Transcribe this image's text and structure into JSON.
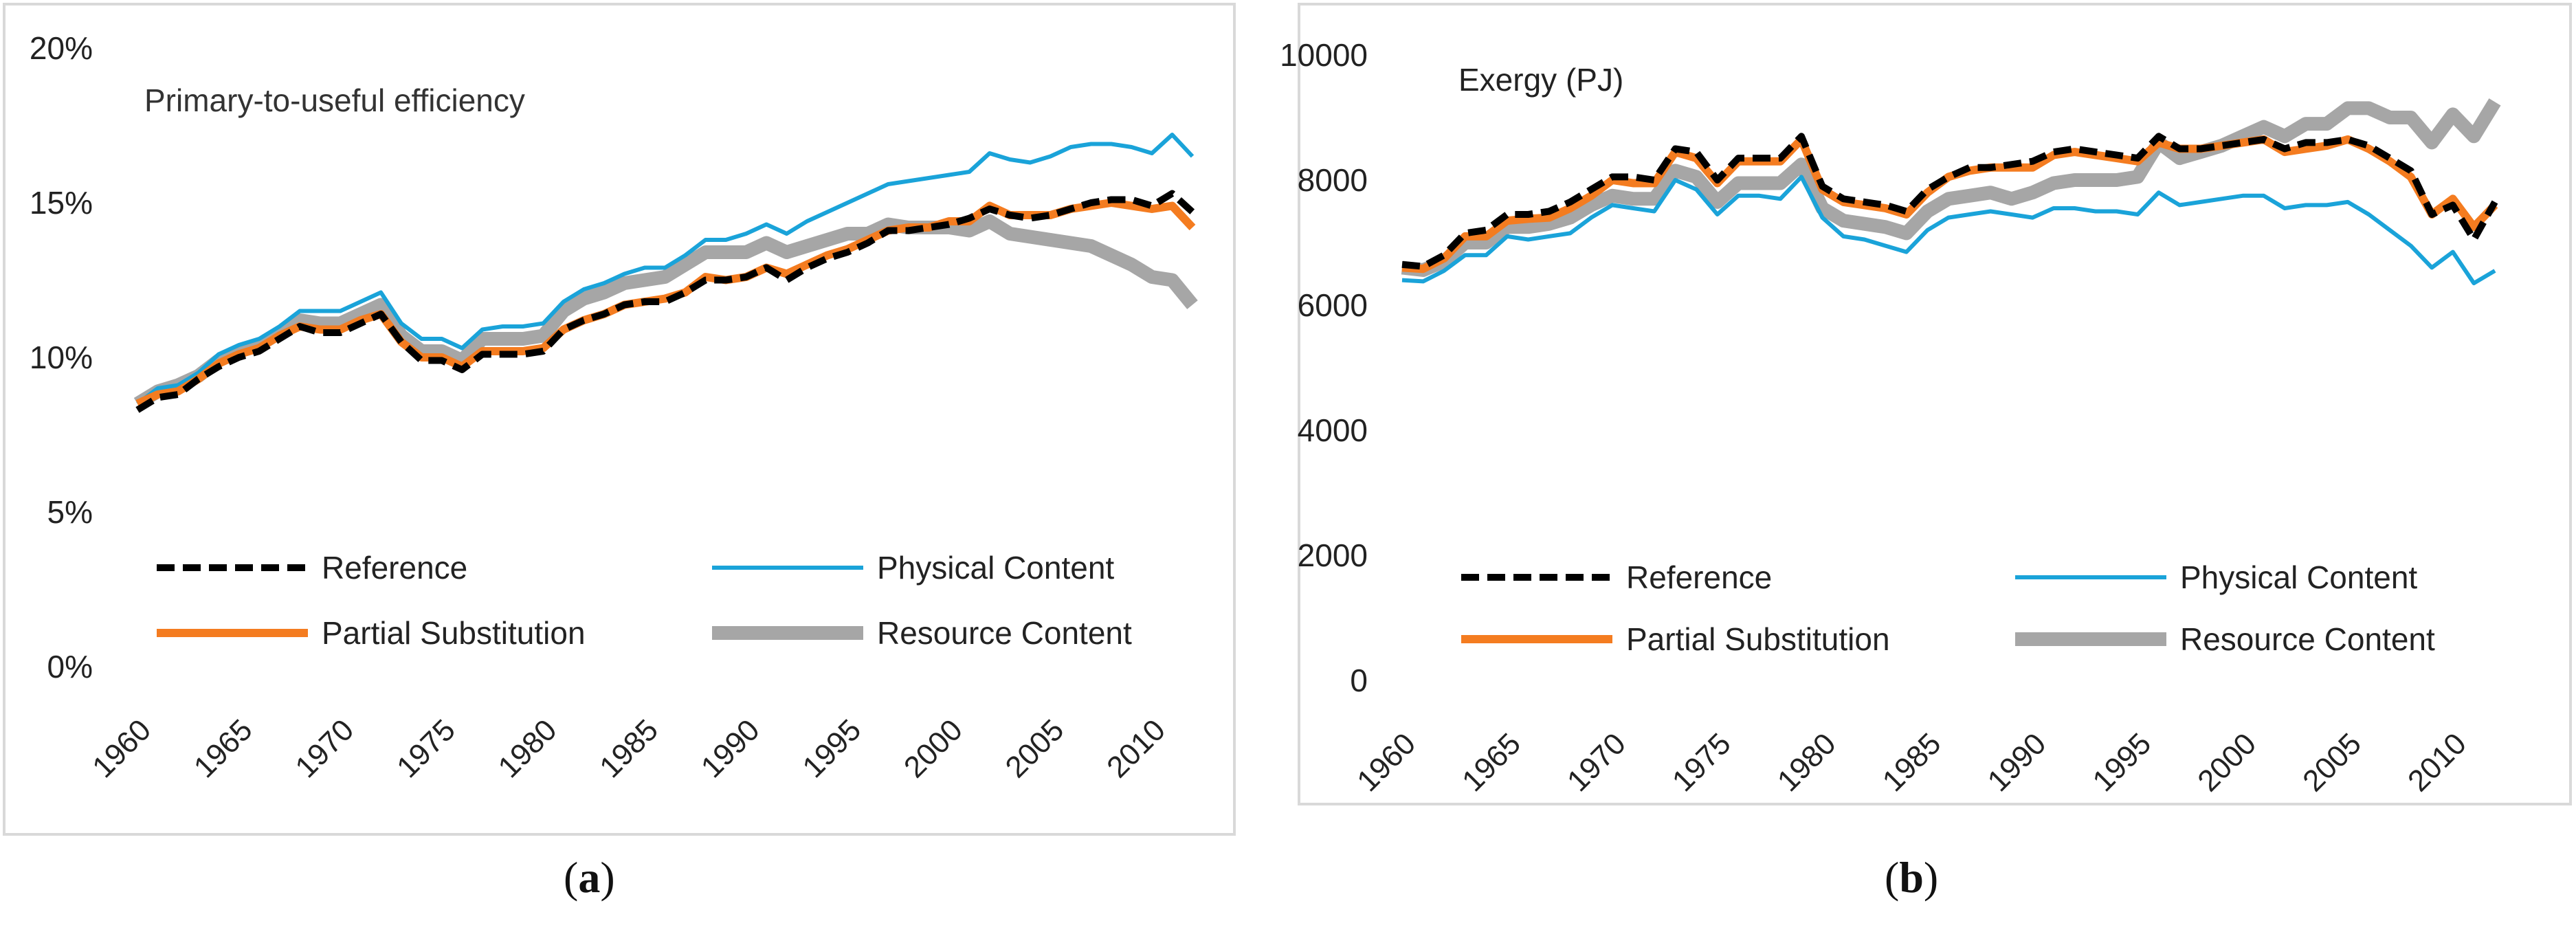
{
  "captions": {
    "a": {
      "open": "(",
      "letter": "a",
      "close": ")"
    },
    "b": {
      "open": "(",
      "letter": "b",
      "close": ")"
    }
  },
  "colors": {
    "reference": "#000000",
    "physical": "#1aa3d9",
    "partial": "#f47c20",
    "resource": "#a6a6a6",
    "frame": "#d9d9d9",
    "text": "#222222"
  },
  "chart_data": [
    {
      "type": "line",
      "title": "Primary-to-useful efficiency",
      "xlabel": "",
      "ylabel": "",
      "ylim": [
        0,
        20
      ],
      "xlim": [
        1960,
        2012
      ],
      "y_ticks": [
        {
          "value": 0,
          "label": "0%"
        },
        {
          "value": 5,
          "label": "5%"
        },
        {
          "value": 10,
          "label": "10%"
        },
        {
          "value": 15,
          "label": "15%"
        },
        {
          "value": 20,
          "label": "20%"
        }
      ],
      "x_ticks": [
        {
          "value": 1960,
          "label": "1960"
        },
        {
          "value": 1965,
          "label": "1965"
        },
        {
          "value": 1970,
          "label": "1970"
        },
        {
          "value": 1975,
          "label": "1975"
        },
        {
          "value": 1980,
          "label": "1980"
        },
        {
          "value": 1985,
          "label": "1985"
        },
        {
          "value": 1990,
          "label": "1990"
        },
        {
          "value": 1995,
          "label": "1995"
        },
        {
          "value": 2000,
          "label": "2000"
        },
        {
          "value": 2005,
          "label": "2005"
        },
        {
          "value": 2010,
          "label": "2010"
        }
      ],
      "x": [
        1960,
        1961,
        1962,
        1963,
        1964,
        1965,
        1966,
        1967,
        1968,
        1969,
        1970,
        1971,
        1972,
        1973,
        1974,
        1975,
        1976,
        1977,
        1978,
        1979,
        1980,
        1981,
        1982,
        1983,
        1984,
        1985,
        1986,
        1987,
        1988,
        1989,
        1990,
        1991,
        1992,
        1993,
        1994,
        1995,
        1996,
        1997,
        1998,
        1999,
        2000,
        2001,
        2002,
        2003,
        2004,
        2005,
        2006,
        2007,
        2008,
        2009,
        2010,
        2011,
        2012
      ],
      "series": [
        {
          "key": "reference",
          "name": "Reference",
          "values": [
            8.3,
            8.7,
            8.8,
            9.3,
            9.7,
            10.0,
            10.2,
            10.6,
            11.0,
            10.8,
            10.8,
            11.1,
            11.4,
            10.5,
            9.9,
            9.9,
            9.6,
            10.1,
            10.1,
            10.1,
            10.2,
            10.9,
            11.2,
            11.4,
            11.7,
            11.8,
            11.8,
            12.1,
            12.5,
            12.5,
            12.6,
            12.9,
            12.5,
            12.9,
            13.2,
            13.4,
            13.7,
            14.1,
            14.1,
            14.2,
            14.3,
            14.5,
            14.8,
            14.6,
            14.5,
            14.6,
            14.8,
            15.0,
            15.1,
            15.1,
            14.9,
            15.3,
            14.7
          ]
        },
        {
          "key": "physical",
          "name": "Physical Content",
          "values": [
            8.5,
            9.0,
            9.1,
            9.5,
            10.1,
            10.4,
            10.6,
            11.0,
            11.5,
            11.5,
            11.5,
            11.8,
            12.1,
            11.1,
            10.6,
            10.6,
            10.3,
            10.9,
            11.0,
            11.0,
            11.1,
            11.8,
            12.2,
            12.4,
            12.7,
            12.9,
            12.9,
            13.3,
            13.8,
            13.8,
            14.0,
            14.3,
            14.0,
            14.4,
            14.7,
            15.0,
            15.3,
            15.6,
            15.7,
            15.8,
            15.9,
            16.0,
            16.6,
            16.4,
            16.3,
            16.5,
            16.8,
            16.9,
            16.9,
            16.8,
            16.6,
            17.2,
            16.5
          ]
        },
        {
          "key": "partial",
          "name": "Partial Substitution",
          "values": [
            8.5,
            8.8,
            8.9,
            9.3,
            9.8,
            10.1,
            10.3,
            10.7,
            11.0,
            10.9,
            10.9,
            11.2,
            11.4,
            10.5,
            10.0,
            10.0,
            9.7,
            10.2,
            10.2,
            10.2,
            10.3,
            10.9,
            11.2,
            11.4,
            11.7,
            11.8,
            11.9,
            12.1,
            12.6,
            12.5,
            12.6,
            12.9,
            12.7,
            13.0,
            13.3,
            13.5,
            13.8,
            14.1,
            14.2,
            14.2,
            14.4,
            14.4,
            14.9,
            14.6,
            14.6,
            14.6,
            14.8,
            14.9,
            15.0,
            14.9,
            14.8,
            14.9,
            14.2
          ]
        },
        {
          "key": "resource",
          "name": "Resource Content",
          "values": [
            8.5,
            8.9,
            9.1,
            9.4,
            9.9,
            10.2,
            10.4,
            10.8,
            11.2,
            11.1,
            11.1,
            11.4,
            11.7,
            10.7,
            10.2,
            10.2,
            9.9,
            10.6,
            10.6,
            10.6,
            10.7,
            11.5,
            11.9,
            12.1,
            12.4,
            12.5,
            12.6,
            13.0,
            13.4,
            13.4,
            13.4,
            13.7,
            13.4,
            13.6,
            13.8,
            14.0,
            14.0,
            14.3,
            14.2,
            14.2,
            14.2,
            14.1,
            14.4,
            14.0,
            13.9,
            13.8,
            13.7,
            13.6,
            13.3,
            13.0,
            12.6,
            12.5,
            11.7
          ]
        }
      ],
      "legend": [
        {
          "key": "reference",
          "label": "Reference"
        },
        {
          "key": "physical",
          "label": "Physical Content"
        },
        {
          "key": "partial",
          "label": "Partial Substitution"
        },
        {
          "key": "resource",
          "label": "Resource Content"
        }
      ],
      "legend_position": "bottom"
    },
    {
      "type": "line",
      "title": "Exergy (PJ)",
      "xlabel": "",
      "ylabel": "",
      "ylim": [
        0,
        10000
      ],
      "xlim": [
        1960,
        2012
      ],
      "y_ticks": [
        {
          "value": 0,
          "label": "0"
        },
        {
          "value": 2000,
          "label": "2000"
        },
        {
          "value": 4000,
          "label": "4000"
        },
        {
          "value": 6000,
          "label": "6000"
        },
        {
          "value": 8000,
          "label": "8000"
        },
        {
          "value": 10000,
          "label": "10000"
        }
      ],
      "x_ticks": [
        {
          "value": 1960,
          "label": "1960"
        },
        {
          "value": 1965,
          "label": "1965"
        },
        {
          "value": 1970,
          "label": "1970"
        },
        {
          "value": 1975,
          "label": "1975"
        },
        {
          "value": 1980,
          "label": "1980"
        },
        {
          "value": 1985,
          "label": "1985"
        },
        {
          "value": 1990,
          "label": "1990"
        },
        {
          "value": 1995,
          "label": "1995"
        },
        {
          "value": 2000,
          "label": "2000"
        },
        {
          "value": 2005,
          "label": "2005"
        },
        {
          "value": 2010,
          "label": "2010"
        }
      ],
      "x": [
        1960,
        1961,
        1962,
        1963,
        1964,
        1965,
        1966,
        1967,
        1968,
        1969,
        1970,
        1971,
        1972,
        1973,
        1974,
        1975,
        1976,
        1977,
        1978,
        1979,
        1980,
        1981,
        1982,
        1983,
        1984,
        1985,
        1986,
        1987,
        1988,
        1989,
        1990,
        1991,
        1992,
        1993,
        1994,
        1995,
        1996,
        1997,
        1998,
        1999,
        2000,
        2001,
        2002,
        2003,
        2004,
        2005,
        2006,
        2007,
        2008,
        2009,
        2010,
        2011,
        2012
      ],
      "series": [
        {
          "key": "reference",
          "name": "Reference",
          "values": [
            6650,
            6620,
            6800,
            7150,
            7200,
            7450,
            7450,
            7500,
            7650,
            7850,
            8050,
            8050,
            8000,
            8500,
            8450,
            8000,
            8350,
            8350,
            8350,
            8700,
            7900,
            7700,
            7650,
            7600,
            7500,
            7850,
            8050,
            8200,
            8200,
            8250,
            8300,
            8450,
            8500,
            8450,
            8400,
            8350,
            8700,
            8500,
            8500,
            8550,
            8600,
            8650,
            8500,
            8600,
            8600,
            8650,
            8550,
            8350,
            8150,
            7450,
            7600,
            7050,
            7650
          ]
        },
        {
          "key": "physical",
          "name": "Physical Content",
          "values": [
            6400,
            6380,
            6550,
            6800,
            6800,
            7100,
            7050,
            7100,
            7150,
            7400,
            7600,
            7550,
            7500,
            8000,
            7850,
            7450,
            7750,
            7750,
            7700,
            8050,
            7400,
            7100,
            7050,
            6950,
            6850,
            7200,
            7400,
            7450,
            7500,
            7450,
            7400,
            7550,
            7550,
            7500,
            7500,
            7450,
            7800,
            7600,
            7650,
            7700,
            7750,
            7750,
            7550,
            7600,
            7600,
            7650,
            7450,
            7200,
            6950,
            6600,
            6850,
            6350,
            6550
          ]
        },
        {
          "key": "partial",
          "name": "Partial Substitution",
          "values": [
            6600,
            6580,
            6750,
            7100,
            7100,
            7350,
            7380,
            7400,
            7550,
            7750,
            8000,
            7950,
            7950,
            8450,
            8350,
            7950,
            8300,
            8300,
            8300,
            8650,
            7850,
            7650,
            7600,
            7550,
            7450,
            7800,
            8050,
            8150,
            8200,
            8200,
            8200,
            8400,
            8450,
            8400,
            8350,
            8300,
            8600,
            8500,
            8500,
            8550,
            8600,
            8650,
            8450,
            8500,
            8550,
            8650,
            8500,
            8300,
            8050,
            7450,
            7700,
            7250,
            7600
          ]
        },
        {
          "key": "resource",
          "name": "Resource Content",
          "values": [
            6600,
            6560,
            6700,
            7000,
            7000,
            7250,
            7250,
            7300,
            7400,
            7600,
            7750,
            7700,
            7700,
            8150,
            8050,
            7650,
            7950,
            7950,
            7950,
            8250,
            7550,
            7350,
            7300,
            7250,
            7150,
            7500,
            7700,
            7750,
            7800,
            7700,
            7800,
            7950,
            8000,
            8000,
            8000,
            8050,
            8600,
            8350,
            8450,
            8550,
            8700,
            8850,
            8700,
            8900,
            8900,
            9150,
            9150,
            9000,
            9000,
            8600,
            9050,
            8700,
            9250
          ]
        }
      ],
      "legend": [
        {
          "key": "reference",
          "label": "Reference"
        },
        {
          "key": "physical",
          "label": "Physical Content"
        },
        {
          "key": "partial",
          "label": "Partial Substitution"
        },
        {
          "key": "resource",
          "label": "Resource Content"
        }
      ],
      "legend_position": "bottom"
    }
  ]
}
